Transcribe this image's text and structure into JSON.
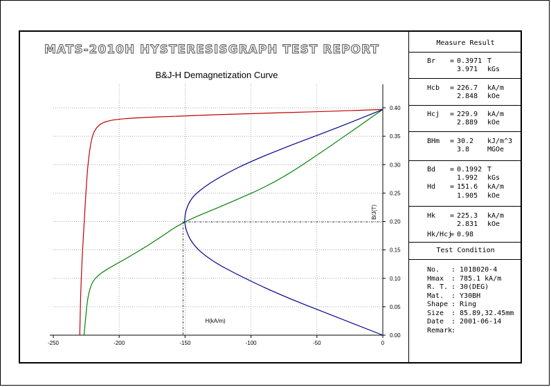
{
  "report_title": "MATS-2010H HYSTERESISGRAPH TEST REPORT",
  "chart_data": {
    "type": "line",
    "title": "B&J-H Demagnetization Curve",
    "xlabel": "H(kA/m)",
    "ylabel": "B/J(T)",
    "xlim": [
      -250,
      0
    ],
    "ylim": [
      0,
      0.4
    ],
    "grid": true,
    "x_ticks": [
      "-250",
      "-200",
      "-150",
      "-100",
      "-50",
      "0"
    ],
    "y_ticks": [
      "0.00",
      "0.05",
      "0.10",
      "0.15",
      "0.20",
      "0.25",
      "0.30",
      "0.35",
      "0.40"
    ],
    "marker": {
      "H": -151.6,
      "B": 0.1992
    },
    "series": [
      {
        "color": "#c00000",
        "points": [
          [
            -229.9,
            0.0
          ],
          [
            -229.5,
            0.05
          ],
          [
            -228.8,
            0.1
          ],
          [
            -227.8,
            0.15
          ],
          [
            -226.5,
            0.2
          ],
          [
            -225.3,
            0.25
          ],
          [
            -223.8,
            0.3
          ],
          [
            -221.5,
            0.34
          ],
          [
            -219,
            0.36
          ],
          [
            -214,
            0.373
          ],
          [
            -205,
            0.379
          ],
          [
            -190,
            0.382
          ],
          [
            -150,
            0.386
          ],
          [
            -100,
            0.39
          ],
          [
            -50,
            0.393
          ],
          [
            0,
            0.3971
          ]
        ]
      },
      {
        "color": "#008000",
        "points": [
          [
            -226.7,
            0.0
          ],
          [
            -225.5,
            0.03
          ],
          [
            -224.2,
            0.06
          ],
          [
            -222.5,
            0.08
          ],
          [
            -220,
            0.095
          ],
          [
            -216,
            0.105
          ],
          [
            -210,
            0.115
          ],
          [
            -200,
            0.128
          ],
          [
            -185,
            0.148
          ],
          [
            -170,
            0.17
          ],
          [
            -151.6,
            0.1992
          ],
          [
            -120,
            0.229
          ],
          [
            -80,
            0.27
          ],
          [
            -40,
            0.332
          ],
          [
            0,
            0.3971
          ]
        ]
      },
      {
        "color": "#00008b",
        "points": [
          [
            0,
            0.0
          ],
          [
            -40,
            0.036
          ],
          [
            -80,
            0.073
          ],
          [
            -110,
            0.106
          ],
          [
            -130,
            0.131
          ],
          [
            -145,
            0.16
          ],
          [
            -151.6,
            0.1992
          ],
          [
            -147,
            0.238
          ],
          [
            -135,
            0.262
          ],
          [
            -120,
            0.283
          ],
          [
            -100,
            0.306
          ],
          [
            -70,
            0.334
          ],
          [
            -40,
            0.36
          ],
          [
            -15,
            0.383
          ],
          [
            0,
            0.3971
          ]
        ]
      }
    ]
  },
  "measure_result": {
    "title": "Measure Result",
    "Br": {
      "label": "Br",
      "eq": "=",
      "v1": "0.3971",
      "u1": "T",
      "v2": "3.971",
      "u2": "kGs"
    },
    "Hcb": {
      "label": "Hcb",
      "eq": "=",
      "v1": "226.7",
      "u1": "kA/m",
      "v2": "2.848",
      "u2": "kOe"
    },
    "Hcj": {
      "label": "Hcj",
      "eq": "=",
      "v1": "229.9",
      "u1": "kA/m",
      "v2": "2.889",
      "u2": "kOe"
    },
    "BHm": {
      "label": "BHm",
      "eq": "=",
      "v1": "30.2",
      "u1": "kJ/m^3",
      "v2": "3.8",
      "u2": "MGOe"
    },
    "Bd": {
      "label": "Bd",
      "eq": "=",
      "v1": "0.1992",
      "u1": "T",
      "v2": "1.992",
      "u2": "kGs"
    },
    "Hd": {
      "label": "Hd",
      "eq": "=",
      "v1": "151.6",
      "u1": "kA/m",
      "v2": "1.905",
      "u2": "kOe"
    },
    "Hk": {
      "label": "Hk",
      "eq": "=",
      "v1": "225.3",
      "u1": "kA/m",
      "v2": "2.831",
      "u2": "kOe"
    },
    "ratio": {
      "label": "Hk/Hcj",
      "eq": "=",
      "v1": "0.98"
    }
  },
  "test_condition": {
    "title": "Test Condition",
    "rows": [
      {
        "label": "No.",
        "value": ": 1018020-4"
      },
      {
        "label": "Hmax",
        "value": ": 785.1  kA/m"
      },
      {
        "label": "R. T.",
        "value": ": 30(DEG)"
      },
      {
        "label": "Mat.",
        "value": ": Y30BH"
      },
      {
        "label": "Shape",
        "value": ": Ring"
      },
      {
        "label": "Size",
        "value": ": 85.89,32.45mm"
      },
      {
        "label": "Date",
        "value": ": 2001-06-14"
      },
      {
        "label": "Remark",
        "value": ":"
      }
    ]
  }
}
